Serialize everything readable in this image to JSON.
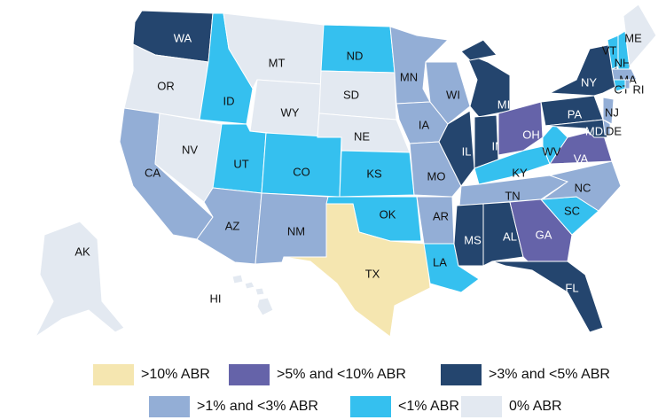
{
  "map": {
    "legend": [
      {
        "label": ">10% ABR",
        "color": "#f5e6b0"
      },
      {
        "label": ">5% and <10% ABR",
        "color": "#6563a9"
      },
      {
        "label": ">3% and <5% ABR",
        "color": "#24456e"
      },
      {
        "label": ">1% and <3% ABR",
        "color": "#93aed6"
      },
      {
        "label": "<1% ABR",
        "color": "#35c0ef"
      },
      {
        "label": "0% ABR",
        "color": "#e3e9f1"
      }
    ],
    "states": [
      {
        "label": "WA",
        "fill": "#24456e"
      },
      {
        "label": "OR",
        "fill": "#e3e9f1"
      },
      {
        "label": "CA",
        "fill": "#93aed6"
      },
      {
        "label": "NV",
        "fill": "#e3e9f1"
      },
      {
        "label": "ID",
        "fill": "#35c0ef"
      },
      {
        "label": "MT",
        "fill": "#e3e9f1"
      },
      {
        "label": "WY",
        "fill": "#e3e9f1"
      },
      {
        "label": "UT",
        "fill": "#35c0ef"
      },
      {
        "label": "CO",
        "fill": "#35c0ef"
      },
      {
        "label": "AZ",
        "fill": "#93aed6"
      },
      {
        "label": "NM",
        "fill": "#93aed6"
      },
      {
        "label": "ND",
        "fill": "#35c0ef"
      },
      {
        "label": "SD",
        "fill": "#e3e9f1"
      },
      {
        "label": "NE",
        "fill": "#e3e9f1"
      },
      {
        "label": "KS",
        "fill": "#35c0ef"
      },
      {
        "label": "OK",
        "fill": "#35c0ef"
      },
      {
        "label": "TX",
        "fill": "#f5e6b0"
      },
      {
        "label": "MN",
        "fill": "#93aed6"
      },
      {
        "label": "IA",
        "fill": "#93aed6"
      },
      {
        "label": "MO",
        "fill": "#93aed6"
      },
      {
        "label": "AR",
        "fill": "#93aed6"
      },
      {
        "label": "LA",
        "fill": "#35c0ef"
      },
      {
        "label": "WI",
        "fill": "#93aed6"
      },
      {
        "label": "IL",
        "fill": "#24456e"
      },
      {
        "label": "MI",
        "fill": "#24456e"
      },
      {
        "label": "IN",
        "fill": "#24456e"
      },
      {
        "label": "OH",
        "fill": "#6563a9"
      },
      {
        "label": "KY",
        "fill": "#35c0ef"
      },
      {
        "label": "TN",
        "fill": "#93aed6"
      },
      {
        "label": "MS",
        "fill": "#24456e"
      },
      {
        "label": "AL",
        "fill": "#24456e"
      },
      {
        "label": "GA",
        "fill": "#6563a9"
      },
      {
        "label": "FL",
        "fill": "#24456e"
      },
      {
        "label": "SC",
        "fill": "#35c0ef"
      },
      {
        "label": "NC",
        "fill": "#93aed6"
      },
      {
        "label": "VA",
        "fill": "#6563a9"
      },
      {
        "label": "WV",
        "fill": "#35c0ef"
      },
      {
        "label": "PA",
        "fill": "#24456e"
      },
      {
        "label": "NY",
        "fill": "#24456e"
      },
      {
        "label": "NJ",
        "fill": "#93aed6"
      },
      {
        "label": "MD",
        "fill": "#24456e"
      },
      {
        "label": "DE",
        "fill": "#93aed6"
      },
      {
        "label": "VT",
        "fill": "#35c0ef"
      },
      {
        "label": "NH",
        "fill": "#35c0ef"
      },
      {
        "label": "ME",
        "fill": "#e3e9f1"
      },
      {
        "label": "MA",
        "fill": "#93aed6"
      },
      {
        "label": "CT",
        "fill": "#35c0ef"
      },
      {
        "label": "RI",
        "fill": "#93aed6"
      },
      {
        "label": "AK",
        "fill": "#e3e9f1"
      },
      {
        "label": "HI",
        "fill": "#e3e9f1"
      }
    ]
  }
}
